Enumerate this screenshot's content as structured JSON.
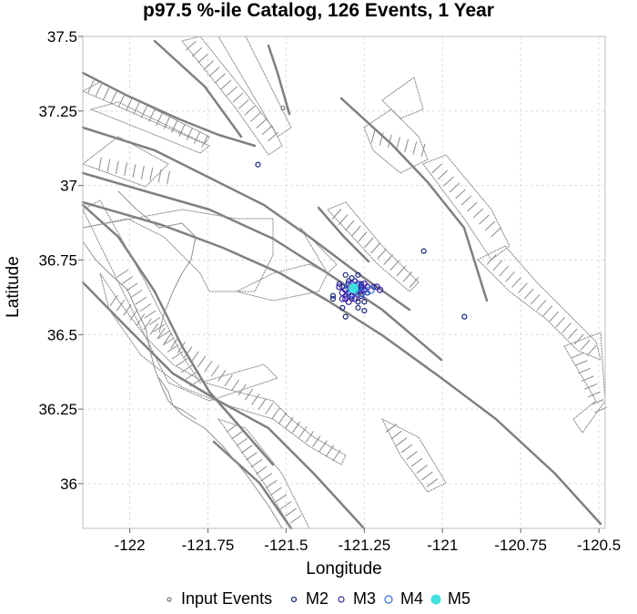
{
  "chart_data": {
    "type": "scatter",
    "title": "p97.5 %-ile Catalog, 126 Events, 1 Year",
    "xlabel": "Longitude",
    "ylabel": "Latitude",
    "xlim": [
      -122.15,
      -120.48
    ],
    "ylim": [
      35.85,
      37.5
    ],
    "x_ticks": [
      -122,
      -121.75,
      -121.5,
      -121.25,
      -121,
      -120.75,
      -120.5
    ],
    "x_tick_labels": [
      "-122",
      "-121.75",
      "-121.5",
      "-121.25",
      "-121",
      "-120.75",
      "-120.5"
    ],
    "y_ticks": [
      36,
      36.25,
      36.5,
      36.75,
      37,
      37.25,
      37.5
    ],
    "y_tick_labels": [
      "36",
      "36.25",
      "36.5",
      "36.75",
      "37",
      "37.25",
      "37.5"
    ],
    "grid": true,
    "legend_position": "bottom",
    "legend": [
      {
        "label": "Input Events",
        "marker": "open-circle",
        "size": 2,
        "color": "#777777"
      },
      {
        "label": "M2",
        "marker": "open-circle",
        "size": 2.5,
        "color": "#1a237e"
      },
      {
        "label": "M3",
        "marker": "open-circle",
        "size": 3,
        "color": "#3b1fa8"
      },
      {
        "label": "M4",
        "marker": "open-circle",
        "size": 4,
        "color": "#2e6fd8"
      },
      {
        "label": "M5",
        "marker": "filled-circle",
        "size": 5.5,
        "color": "#3fe0e0"
      }
    ],
    "series": [
      {
        "name": "Input Events",
        "points": [
          [
            -121.51,
            37.26
          ],
          [
            -121.3,
            36.66
          ],
          [
            -121.26,
            36.64
          ],
          [
            -121.27,
            36.62
          ]
        ]
      },
      {
        "name": "M2",
        "points": [
          [
            -121.59,
            37.07
          ],
          [
            -121.06,
            36.78
          ],
          [
            -120.93,
            36.56
          ],
          [
            -121.35,
            36.63
          ],
          [
            -121.35,
            36.62
          ],
          [
            -121.31,
            36.7
          ],
          [
            -121.27,
            36.7
          ],
          [
            -121.31,
            36.56
          ],
          [
            -121.27,
            36.59
          ],
          [
            -121.25,
            36.58
          ],
          [
            -121.32,
            36.59
          ],
          [
            -121.3,
            36.68
          ],
          [
            -121.32,
            36.66
          ],
          [
            -121.25,
            36.61
          ],
          [
            -121.24,
            36.64
          ],
          [
            -121.22,
            36.66
          ],
          [
            -121.29,
            36.62
          ],
          [
            -121.33,
            36.67
          ],
          [
            -121.28,
            36.68
          ],
          [
            -121.26,
            36.67
          ],
          [
            -121.31,
            36.63
          ],
          [
            -121.29,
            36.69
          ],
          [
            -121.27,
            36.61
          ]
        ]
      },
      {
        "name": "M3",
        "points": [
          [
            -121.33,
            36.66
          ],
          [
            -121.31,
            36.65
          ],
          [
            -121.3,
            36.64
          ],
          [
            -121.29,
            36.63
          ],
          [
            -121.28,
            36.66
          ],
          [
            -121.27,
            36.65
          ],
          [
            -121.26,
            36.66
          ],
          [
            -121.25,
            36.65
          ],
          [
            -121.31,
            36.62
          ],
          [
            -121.3,
            36.67
          ],
          [
            -121.29,
            36.65
          ],
          [
            -121.28,
            36.64
          ],
          [
            -121.26,
            36.63
          ],
          [
            -121.24,
            36.66
          ],
          [
            -121.32,
            36.64
          ],
          [
            -121.27,
            36.67
          ],
          [
            -121.3,
            36.61
          ],
          [
            -121.28,
            36.62
          ],
          [
            -121.21,
            36.66
          ],
          [
            -121.2,
            36.65
          ],
          [
            -121.25,
            36.67
          ],
          [
            -121.32,
            36.62
          ],
          [
            -121.29,
            36.67
          ],
          [
            -121.26,
            36.65
          ]
        ]
      },
      {
        "name": "M4",
        "points": [
          [
            -121.3,
            36.66
          ],
          [
            -121.27,
            36.66
          ],
          [
            -121.29,
            36.64
          ],
          [
            -121.26,
            36.64
          ],
          [
            -121.23,
            36.65
          ]
        ]
      },
      {
        "name": "M5",
        "points": [
          [
            -121.285,
            36.655
          ]
        ]
      }
    ]
  }
}
